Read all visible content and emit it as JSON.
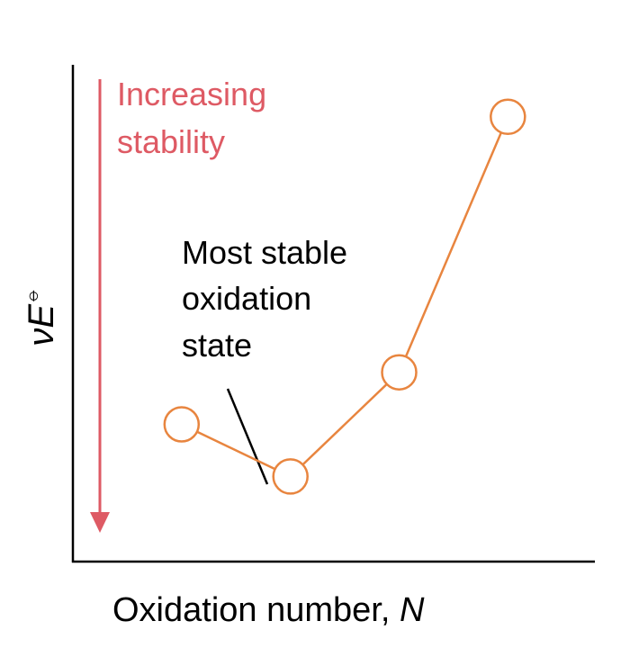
{
  "chart_data": {
    "type": "line",
    "xlabel": "Oxidation number, ",
    "xlabel_var": "N",
    "ylabel_prefix": "ν",
    "ylabel_var": "E",
    "ylabel_sup": "⦵",
    "x": [
      1,
      2,
      3,
      4
    ],
    "series": [
      {
        "values": [
          2.4,
          1.3,
          3.5,
          8.9
        ]
      }
    ],
    "xlim": [
      0,
      4.8
    ],
    "ylim": [
      -0.5,
      10
    ],
    "grid": false,
    "ticks_shown": false,
    "annotations": {
      "stability": {
        "lines": [
          "Increasing",
          "stability"
        ],
        "direction": "down"
      },
      "callout": {
        "lines": [
          "Most stable",
          "oxidation",
          "state"
        ],
        "points_to_index": 1
      }
    }
  },
  "colors": {
    "series": "#e8853f",
    "stability": "#de5a64",
    "axis": "#000000",
    "text": "#000000"
  }
}
